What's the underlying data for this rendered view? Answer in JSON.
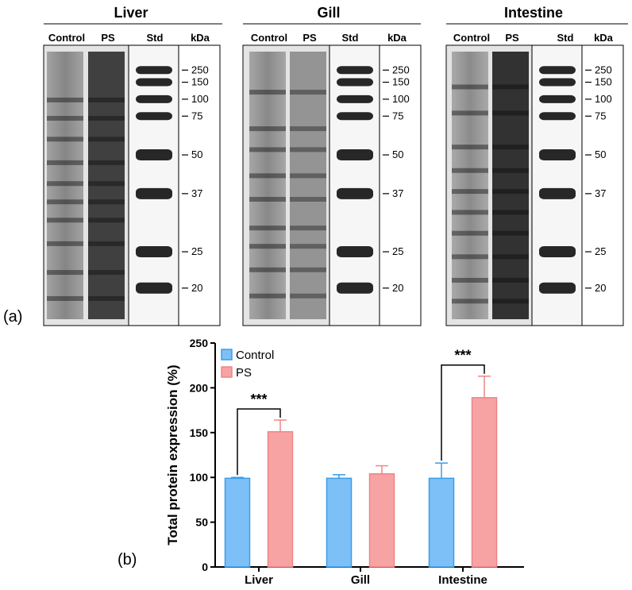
{
  "panels": {
    "a_label": "(a)",
    "b_label": "(b)"
  },
  "gels": [
    {
      "title": "Liver",
      "lanes": [
        "Control",
        "PS",
        "Std"
      ],
      "kda_header": "kDa",
      "ladder_kda": [
        "250",
        "150",
        "100",
        "75",
        "50",
        "37",
        "25",
        "20"
      ],
      "sample_band_fractions": [
        0.17,
        0.24,
        0.32,
        0.41,
        0.49,
        0.56,
        0.63,
        0.72,
        0.83,
        0.93
      ],
      "ladder_band_fractions": [
        0.06,
        0.11,
        0.18,
        0.25,
        0.41,
        0.57,
        0.81,
        0.96
      ]
    },
    {
      "title": "Gill",
      "lanes": [
        "Control",
        "PS",
        "Std"
      ],
      "kda_header": "kDa",
      "ladder_kda": [
        "250",
        "150",
        "100",
        "75",
        "50",
        "37",
        "25",
        "20"
      ],
      "sample_band_fractions": [
        0.14,
        0.28,
        0.36,
        0.46,
        0.55,
        0.66,
        0.73,
        0.82,
        0.92
      ],
      "ladder_band_fractions": [
        0.06,
        0.11,
        0.18,
        0.25,
        0.41,
        0.57,
        0.81,
        0.96
      ]
    },
    {
      "title": "Intestine",
      "lanes": [
        "Control",
        "PS",
        "Std"
      ],
      "kda_header": "kDa",
      "ladder_kda": [
        "250",
        "150",
        "100",
        "75",
        "50",
        "37",
        "25",
        "20"
      ],
      "sample_band_fractions": [
        0.12,
        0.22,
        0.35,
        0.44,
        0.52,
        0.6,
        0.68,
        0.77,
        0.86,
        0.94
      ],
      "ladder_band_fractions": [
        0.06,
        0.11,
        0.18,
        0.25,
        0.41,
        0.57,
        0.81,
        0.96
      ]
    }
  ],
  "chart_data": {
    "type": "bar",
    "categories": [
      "Liver",
      "Gill",
      "Intestine"
    ],
    "series": [
      {
        "name": "Control",
        "values": [
          99,
          99,
          99
        ],
        "errors": [
          1,
          4,
          17
        ],
        "color": "#7dc0f7",
        "stroke": "#3a9ee8"
      },
      {
        "name": "PS",
        "values": [
          151,
          104,
          189
        ],
        "errors": [
          13,
          9,
          24
        ],
        "color": "#f8a3a3",
        "stroke": "#ee8585"
      }
    ],
    "ylabel": "Total protein expression (%)",
    "xlabel": "",
    "ylim": [
      0,
      250
    ],
    "yticks": [
      "0",
      "50",
      "100",
      "150",
      "200",
      "250"
    ],
    "legend": "top-left",
    "annotations": [
      {
        "category": "Liver",
        "text": "***"
      },
      {
        "category": "Intestine",
        "text": "***"
      }
    ]
  }
}
